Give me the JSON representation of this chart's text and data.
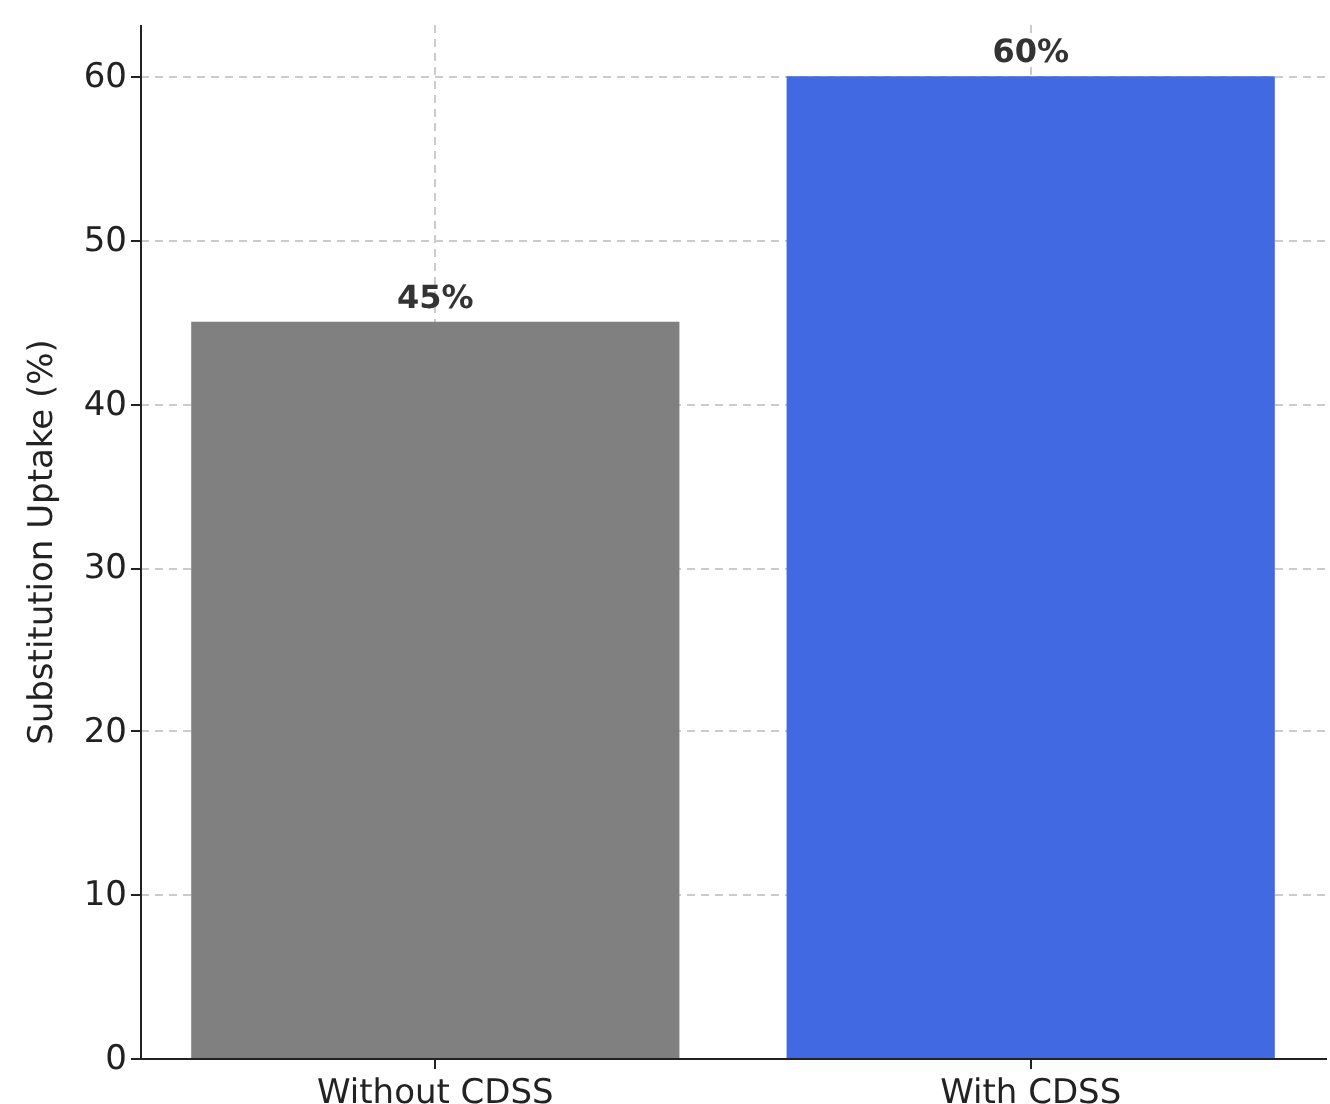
{
  "chart_data": {
    "type": "bar",
    "ylabel": "Substitution Uptake (%)",
    "categories": [
      "Without CDSS",
      "With CDSS"
    ],
    "values": [
      45,
      60
    ],
    "colors": [
      "#808080",
      "#4169e1"
    ],
    "value_labels": [
      "45%",
      "60%"
    ],
    "ylim": [
      0,
      63.2
    ],
    "yticks": [
      0,
      10,
      20,
      30,
      40,
      50,
      60
    ],
    "grid": true
  }
}
